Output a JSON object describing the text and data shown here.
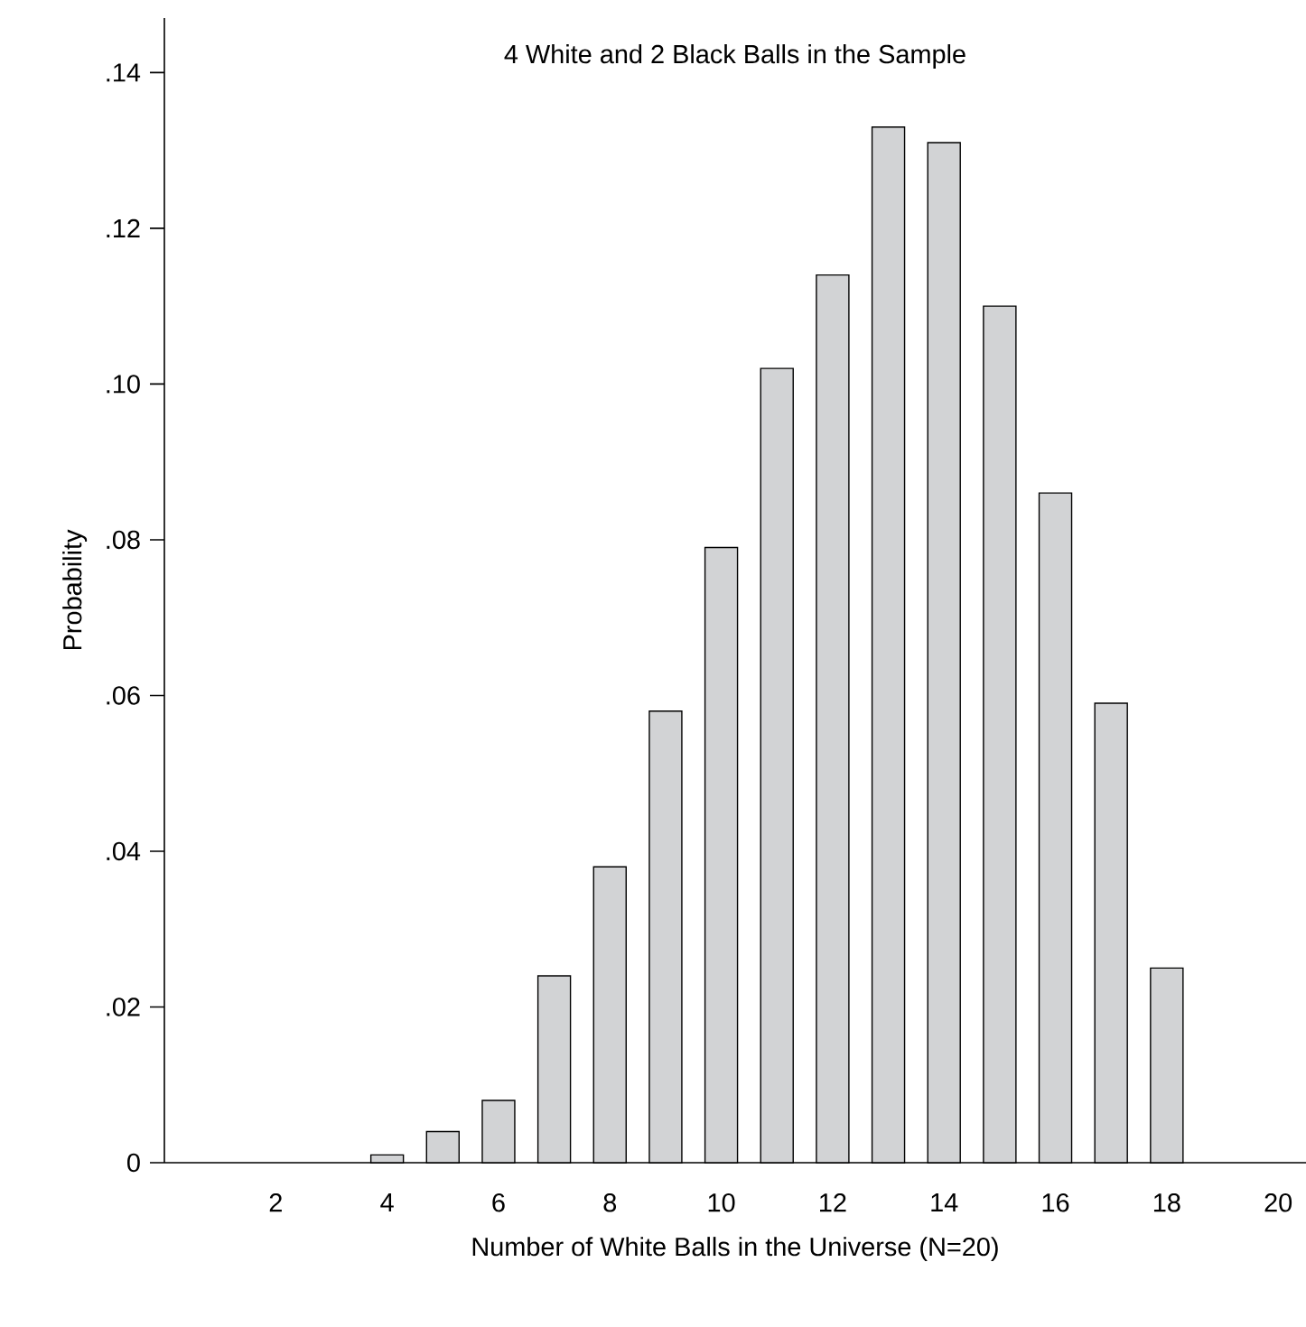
{
  "chart_data": {
    "type": "bar",
    "title": "4 White and 2 Black Balls in the Sample",
    "xlabel": "Number of White Balls in the Universe (N=20)",
    "ylabel": "Probability",
    "x": [
      4,
      5,
      6,
      7,
      8,
      9,
      10,
      11,
      12,
      13,
      14,
      15,
      16,
      17,
      18
    ],
    "values": [
      0.001,
      0.004,
      0.008,
      0.024,
      0.038,
      0.058,
      0.079,
      0.102,
      0.114,
      0.133,
      0.131,
      0.11,
      0.086,
      0.059,
      0.025
    ],
    "color": "#d2d3d5",
    "xlim": [
      0,
      20.5
    ],
    "xticks": [
      2,
      4,
      6,
      8,
      10,
      12,
      14,
      16,
      18,
      20
    ],
    "ylim": [
      0,
      0.147
    ],
    "yticks": [
      {
        "value": 0,
        "label": "0"
      },
      {
        "value": 0.02,
        "label": ".02"
      },
      {
        "value": 0.04,
        "label": ".04"
      },
      {
        "value": 0.06,
        "label": ".06"
      },
      {
        "value": 0.08,
        "label": ".08"
      },
      {
        "value": 0.1,
        "label": ".10"
      },
      {
        "value": 0.12,
        "label": ".12"
      },
      {
        "value": 0.14,
        "label": ".14"
      }
    ],
    "grid": false
  }
}
